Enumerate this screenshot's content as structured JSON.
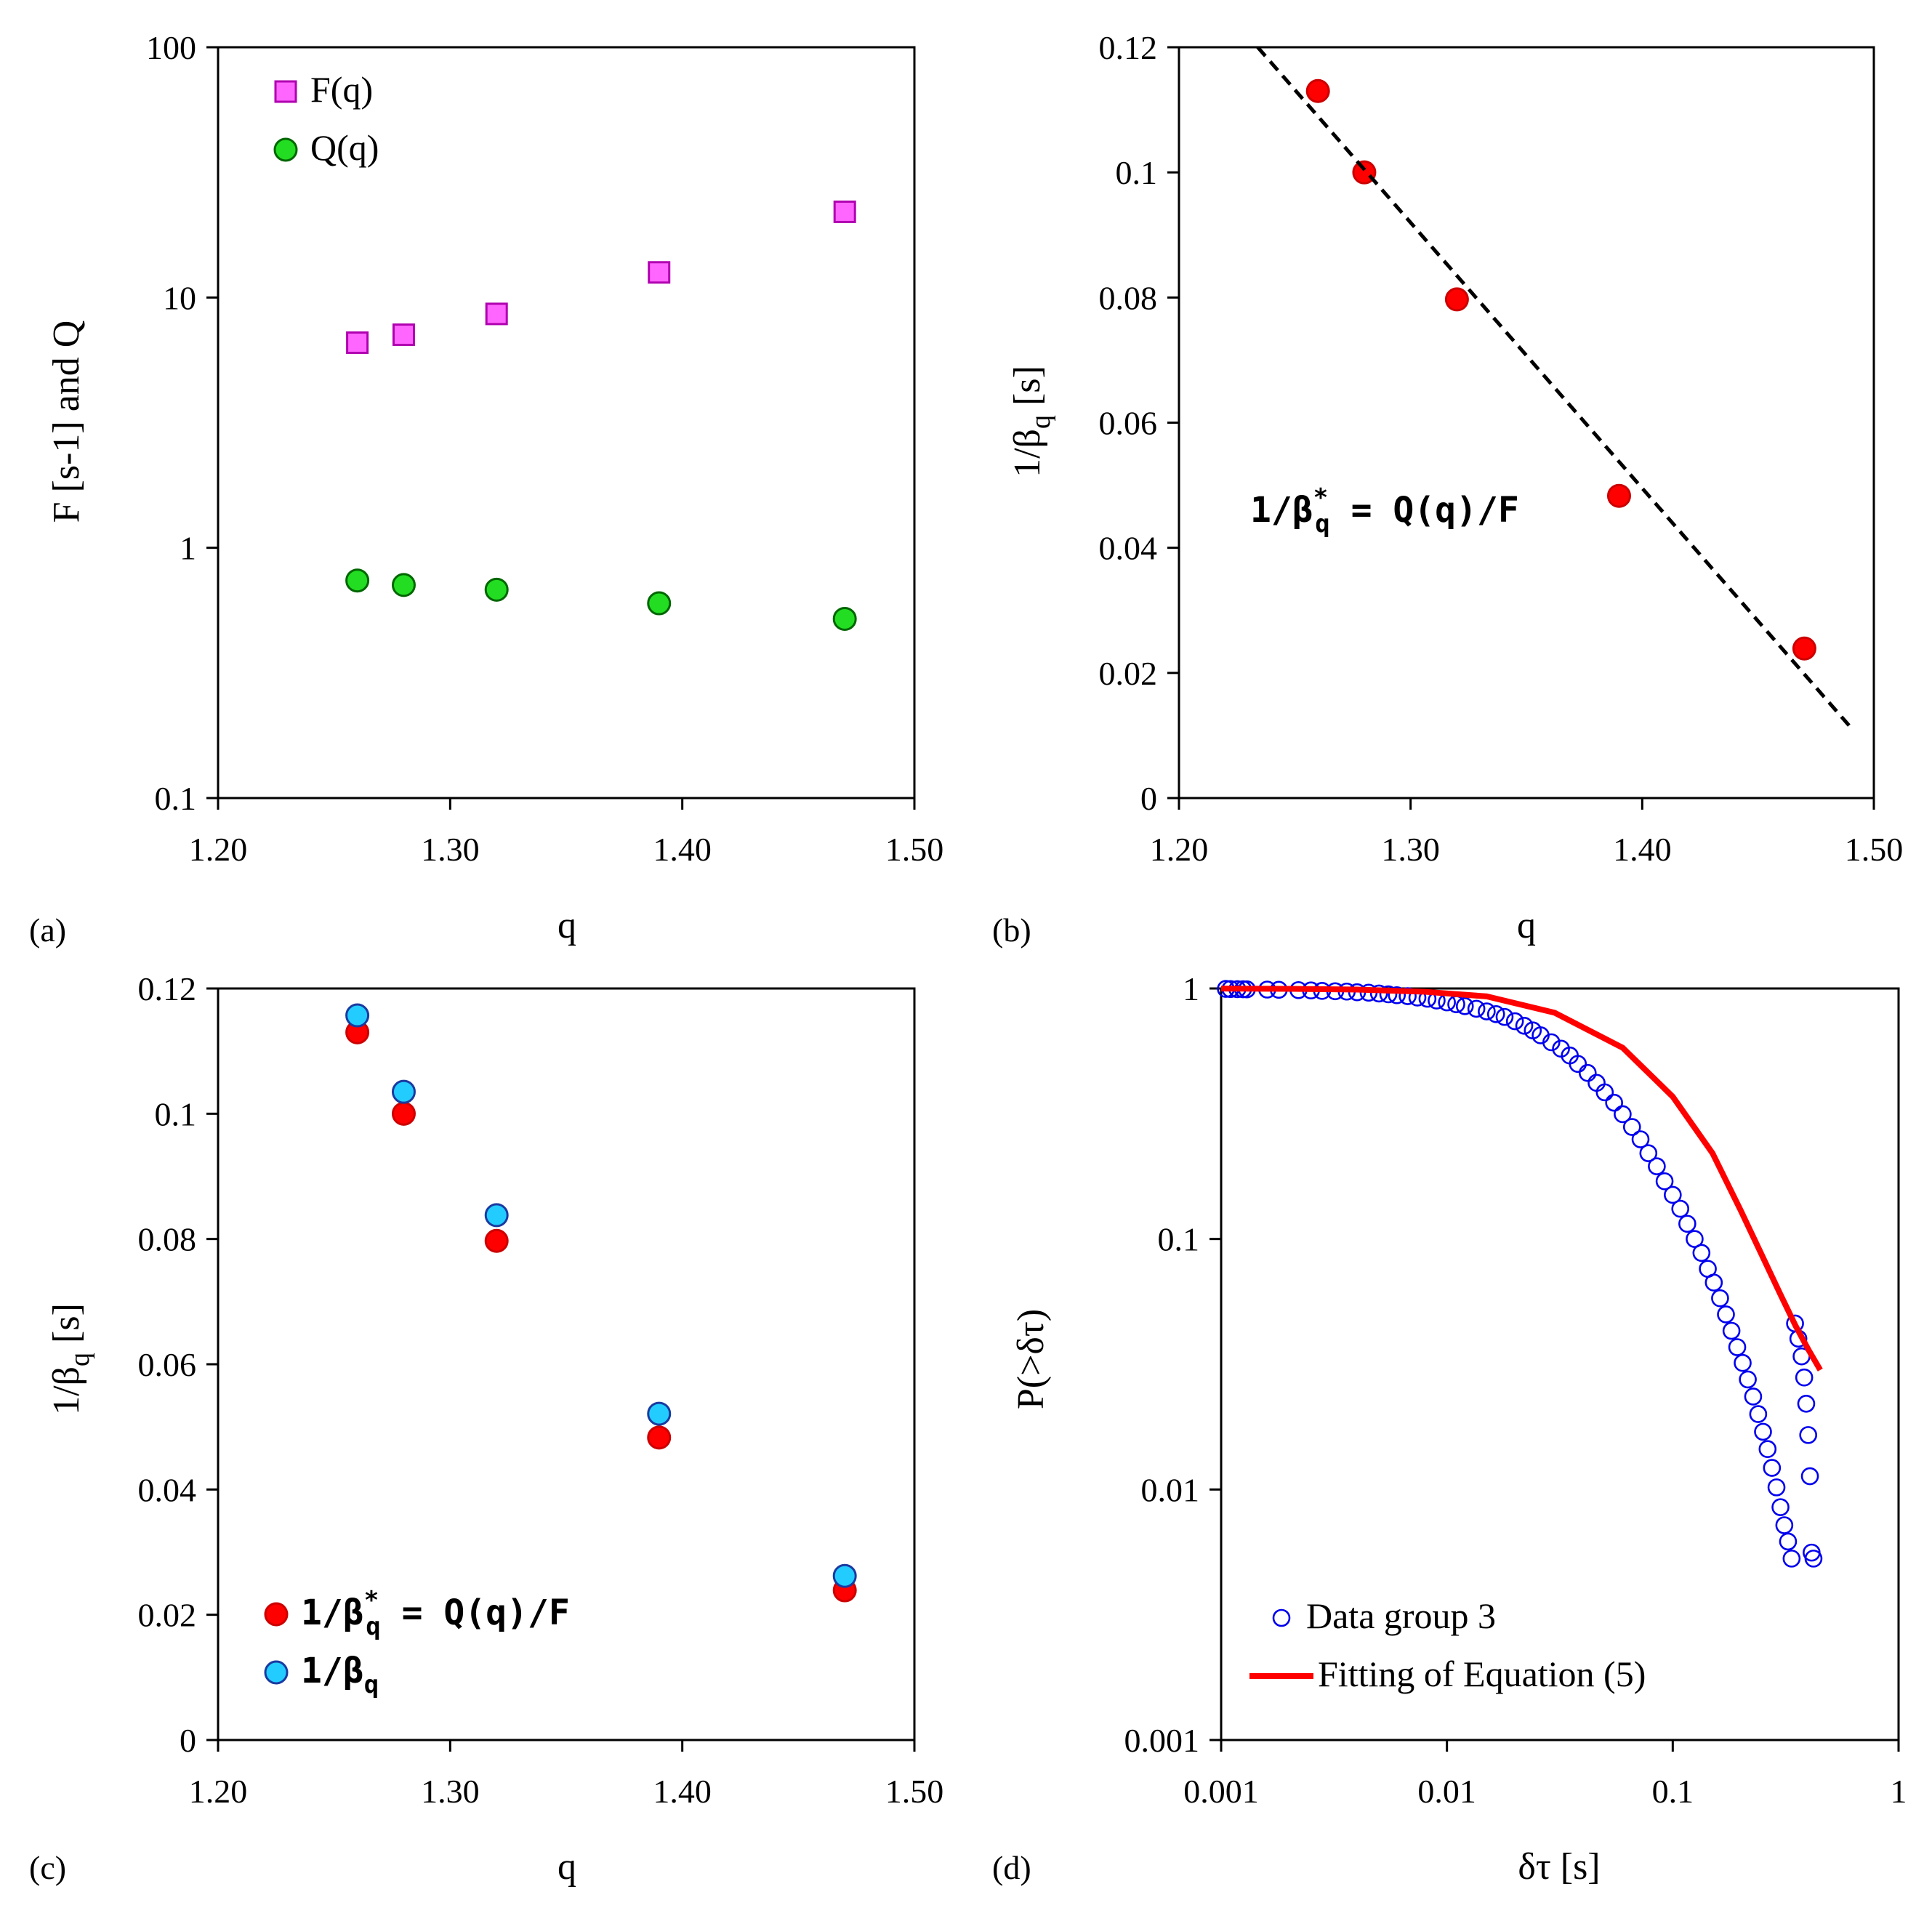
{
  "chart_data": [
    {
      "panel": "(a)",
      "type": "scatter",
      "xlabel": "q",
      "ylabel": "F [s-1] and Q",
      "yscale": "log",
      "xlim": [
        1.2,
        1.5
      ],
      "ylim": [
        0.1,
        100
      ],
      "x_ticks": [
        "1.20",
        "1.30",
        "1.40",
        "1.50"
      ],
      "y_ticks": [
        "0.1",
        "1",
        "10",
        "100"
      ],
      "legend_position": "top-left",
      "series": [
        {
          "name": "F(q)",
          "marker": "square",
          "color": "#ff66ff",
          "x": [
            1.26,
            1.28,
            1.32,
            1.39,
            1.47
          ],
          "y": [
            6.6,
            7.1,
            8.6,
            12.6,
            22.0
          ]
        },
        {
          "name": "Q(q)",
          "marker": "circle",
          "color": "#22dd22",
          "x": [
            1.26,
            1.28,
            1.32,
            1.39,
            1.47
          ],
          "y": [
            0.74,
            0.71,
            0.68,
            0.6,
            0.52
          ]
        }
      ]
    },
    {
      "panel": "(b)",
      "type": "scatter",
      "xlabel": "q",
      "ylabel": "1/β",
      "ylabel_sub": "q",
      "ylabel_tail": " [s]",
      "xlim": [
        1.2,
        1.5
      ],
      "ylim": [
        0,
        0.12
      ],
      "x_ticks": [
        "1.20",
        "1.30",
        "1.40",
        "1.50"
      ],
      "y_ticks": [
        "0",
        "0.02",
        "0.04",
        "0.06",
        "0.08",
        "0.1",
        "0.12"
      ],
      "annotation": {
        "pre": "1/β",
        "sup": "*",
        "sub": "q",
        "post": " = Q(q)/F"
      },
      "series": [
        {
          "name": "",
          "marker": "circle",
          "color": "#ff0000",
          "x": [
            1.26,
            1.28,
            1.32,
            1.39,
            1.47
          ],
          "y": [
            0.113,
            0.1,
            0.0797,
            0.0483,
            0.0239
          ]
        },
        {
          "name": "",
          "type": "line",
          "style": "dashed",
          "color": "#000000",
          "x": [
            1.234,
            1.49
          ],
          "y": [
            0.12,
            0.0113
          ]
        }
      ]
    },
    {
      "panel": "(c)",
      "type": "scatter",
      "xlabel": "q",
      "ylabel": "1/β",
      "ylabel_sub": "q",
      "ylabel_tail": " [s]",
      "xlim": [
        1.2,
        1.5
      ],
      "ylim": [
        0,
        0.12
      ],
      "x_ticks": [
        "1.20",
        "1.30",
        "1.40",
        "1.50"
      ],
      "y_ticks": [
        "0",
        "0.02",
        "0.04",
        "0.06",
        "0.08",
        "0.1",
        "0.12"
      ],
      "legend_position": "bottom-left",
      "series": [
        {
          "name": {
            "pre": "1/β",
            "sup": "*",
            "sub": "q",
            "post": " = Q(q)/F"
          },
          "marker": "circle",
          "color": "#ff0000",
          "x": [
            1.26,
            1.28,
            1.32,
            1.39,
            1.47
          ],
          "y": [
            0.113,
            0.1,
            0.0797,
            0.0483,
            0.0239
          ]
        },
        {
          "name": {
            "pre": "1/β",
            "sup": "",
            "sub": "q",
            "post": ""
          },
          "marker": "circle",
          "color": "#22ccff",
          "x": [
            1.26,
            1.28,
            1.32,
            1.39,
            1.47
          ],
          "y": [
            0.1157,
            0.1035,
            0.0838,
            0.0521,
            0.0262
          ]
        }
      ]
    },
    {
      "panel": "(d)",
      "type": "scatter",
      "xlabel": "δτ [s]",
      "ylabel": "P(>δτ)",
      "xscale": "log",
      "yscale": "log",
      "xlim": [
        0.001,
        1
      ],
      "ylim": [
        0.001,
        1
      ],
      "x_ticks": [
        "0.001",
        "0.01",
        "0.1",
        "1"
      ],
      "y_ticks": [
        "0.001",
        "0.01",
        "0.1",
        "1"
      ],
      "legend_position": "bottom-left",
      "series": [
        {
          "name": "Data group 3",
          "marker": "open-circle",
          "color": "#0000ee",
          "x": [
            0.00105,
            0.0011,
            0.00118,
            0.00125,
            0.0013,
            0.0016,
            0.0018,
            0.0022,
            0.0025,
            0.0028,
            0.0032,
            0.0036,
            0.004,
            0.0045,
            0.005,
            0.0055,
            0.006,
            0.0067,
            0.0074,
            0.0082,
            0.009,
            0.01,
            0.011,
            0.012,
            0.0135,
            0.015,
            0.0165,
            0.018,
            0.02,
            0.022,
            0.024,
            0.026,
            0.029,
            0.032,
            0.035,
            0.038,
            0.042,
            0.046,
            0.05,
            0.055,
            0.06,
            0.066,
            0.072,
            0.078,
            0.085,
            0.092,
            0.1,
            0.108,
            0.116,
            0.125,
            0.134,
            0.143,
            0.152,
            0.162,
            0.172,
            0.182,
            0.193,
            0.204,
            0.215,
            0.227,
            0.239,
            0.251,
            0.263,
            0.275,
            0.288,
            0.3,
            0.312,
            0.324,
            0.336,
            0.348,
            0.36,
            0.372,
            0.382,
            0.39,
            0.398,
            0.405,
            0.412,
            0.42
          ],
          "y": [
            0.996,
            0.995,
            0.994,
            0.993,
            0.992,
            0.99,
            0.988,
            0.985,
            0.982,
            0.978,
            0.975,
            0.972,
            0.966,
            0.962,
            0.955,
            0.948,
            0.94,
            0.932,
            0.92,
            0.91,
            0.895,
            0.88,
            0.865,
            0.85,
            0.83,
            0.81,
            0.79,
            0.77,
            0.74,
            0.71,
            0.68,
            0.65,
            0.61,
            0.575,
            0.54,
            0.5,
            0.46,
            0.42,
            0.385,
            0.35,
            0.315,
            0.28,
            0.25,
            0.22,
            0.195,
            0.17,
            0.15,
            0.132,
            0.115,
            0.1,
            0.088,
            0.076,
            0.067,
            0.058,
            0.05,
            0.043,
            0.037,
            0.032,
            0.0275,
            0.0235,
            0.02,
            0.017,
            0.0145,
            0.0122,
            0.0102,
            0.0085,
            0.0072,
            0.0062,
            0.0053,
            0.046,
            0.04,
            0.034,
            0.028,
            0.022,
            0.0165,
            0.0113,
            0.0056,
            0.0053
          ]
        },
        {
          "name": "Fitting of Equation (5)",
          "type": "line",
          "color": "#ff0000",
          "x": [
            0.001,
            0.002,
            0.004,
            0.008,
            0.015,
            0.03,
            0.06,
            0.1,
            0.15,
            0.2,
            0.25,
            0.3,
            0.35,
            0.4,
            0.45
          ],
          "y": [
            0.999,
            0.997,
            0.99,
            0.97,
            0.93,
            0.8,
            0.58,
            0.37,
            0.22,
            0.13,
            0.085,
            0.06,
            0.045,
            0.036,
            0.03
          ]
        }
      ]
    }
  ]
}
